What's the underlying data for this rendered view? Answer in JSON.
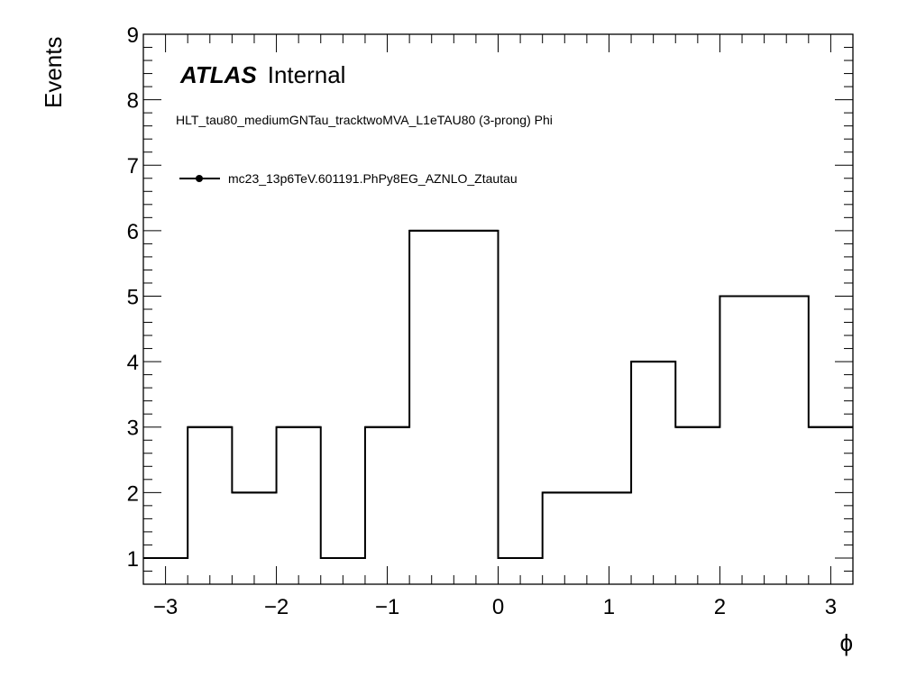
{
  "chart_data": {
    "type": "histogram",
    "label": {
      "experiment": "ATLAS",
      "status": "Internal",
      "selection": "HLT_tau80_mediumGNTau_tracktwoMVA_L1eTAU80 (3-prong) Phi"
    },
    "xlabel": "ϕ",
    "ylabel": "Events",
    "xlim": [
      -3.2,
      3.2
    ],
    "ylim": [
      0.6,
      9.0
    ],
    "x_ticks": [
      -3,
      -2,
      -1,
      0,
      1,
      2,
      3
    ],
    "x_tick_labels": [
      "−3",
      "−2",
      "−1",
      "0",
      "1",
      "2",
      "3"
    ],
    "y_ticks": [
      1,
      2,
      3,
      4,
      5,
      6,
      7,
      8,
      9
    ],
    "y_tick_labels": [
      "1",
      "2",
      "3",
      "4",
      "5",
      "6",
      "7",
      "8",
      "9"
    ],
    "series": [
      {
        "name": "mc23_13p6TeV.601191.PhPy8EG_AZNLO_Ztautau",
        "color": "#000000",
        "bin_edges": [
          -3.2,
          -2.8,
          -2.4,
          -2.0,
          -1.6,
          -1.2,
          -0.8,
          -0.4,
          0.0,
          0.4,
          0.8,
          1.2,
          1.6,
          2.0,
          2.4,
          2.8,
          3.2
        ],
        "values": [
          1,
          3,
          2,
          3,
          1,
          3,
          6,
          6,
          1,
          2,
          2,
          4,
          3,
          5,
          5,
          3
        ]
      }
    ],
    "legend_position": "top-left",
    "grid": false
  }
}
